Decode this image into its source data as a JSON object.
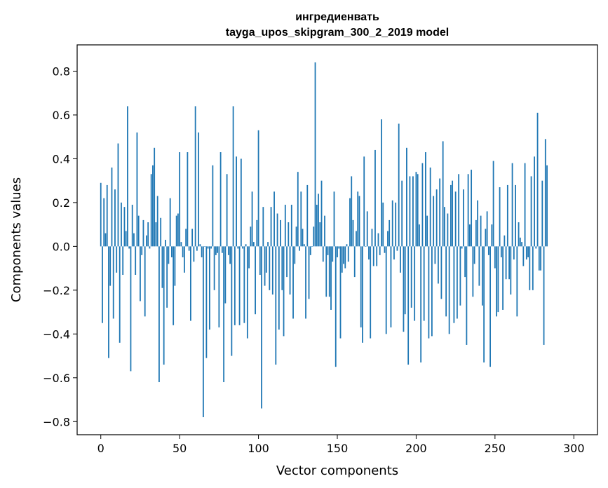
{
  "chart_data": {
    "type": "bar",
    "title_lines": [
      "ингредиенвать",
      "tayga_upos_skipgram_300_2_2019 model"
    ],
    "xlabel": "Vector components",
    "ylabel": "Components values",
    "xlim": [
      -15,
      315
    ],
    "ylim": [
      -0.86,
      0.92
    ],
    "xticks": [
      0,
      50,
      100,
      150,
      200,
      250,
      300
    ],
    "yticks": [
      -0.8,
      -0.6,
      -0.4,
      -0.2,
      0.0,
      0.2,
      0.4,
      0.6,
      0.8
    ],
    "ytick_labels": [
      "−0.8",
      "−0.6",
      "−0.4",
      "−0.2",
      "0.0",
      "0.2",
      "0.4",
      "0.6",
      "0.8"
    ],
    "grid": false,
    "bar_color": "#1f77b4",
    "values": [
      0.29,
      -0.35,
      0.22,
      0.06,
      0.28,
      -0.51,
      -0.18,
      0.36,
      -0.33,
      0.26,
      -0.12,
      0.47,
      -0.44,
      0.2,
      -0.13,
      0.18,
      0.07,
      0.64,
      -0.01,
      -0.57,
      0.19,
      0.06,
      -0.13,
      0.52,
      0.14,
      -0.25,
      -0.04,
      0.12,
      -0.32,
      0.05,
      0.11,
      -0.01,
      0.33,
      0.37,
      0.45,
      0.11,
      0.23,
      -0.62,
      0.13,
      -0.19,
      -0.54,
      0.03,
      -0.28,
      -0.08,
      0.22,
      -0.05,
      -0.36,
      -0.18,
      0.14,
      0.15,
      0.43,
      0.02,
      -0.05,
      -0.12,
      0.08,
      0.43,
      -0.02,
      -0.34,
      0.08,
      -0.07,
      0.64,
      -0.02,
      0.52,
      0.01,
      -0.05,
      -0.78,
      0.0,
      -0.51,
      -0.01,
      -0.38,
      -0.01,
      0.37,
      -0.2,
      -0.04,
      -0.03,
      -0.37,
      0.43,
      -0.03,
      -0.62,
      -0.26,
      0.33,
      -0.04,
      -0.08,
      -0.5,
      0.64,
      -0.36,
      0.41,
      -0.01,
      -0.36,
      0.4,
      -0.01,
      -0.35,
      0.01,
      -0.42,
      -0.1,
      0.09,
      0.25,
      0.02,
      -0.31,
      0.12,
      0.53,
      -0.13,
      -0.74,
      0.18,
      -0.18,
      -0.12,
      0.02,
      -0.2,
      0.18,
      -0.22,
      0.25,
      -0.54,
      0.15,
      -0.38,
      0.12,
      -0.2,
      -0.41,
      0.19,
      -0.14,
      0.11,
      -0.22,
      0.19,
      -0.33,
      -0.08,
      0.09,
      0.34,
      -0.02,
      0.25,
      0.08,
      0.01,
      -0.33,
      0.28,
      -0.24,
      -0.04,
      0.0,
      0.09,
      0.84,
      0.19,
      0.24,
      0.11,
      0.3,
      -0.07,
      0.14,
      -0.23,
      -0.04,
      -0.23,
      -0.29,
      -0.07,
      0.25,
      -0.55,
      -0.05,
      -0.01,
      -0.42,
      -0.12,
      -0.08,
      -0.1,
      0.01,
      -0.07,
      0.22,
      0.32,
      0.12,
      -0.14,
      0.07,
      0.25,
      0.23,
      -0.37,
      -0.44,
      0.41,
      0.0,
      0.16,
      -0.06,
      -0.42,
      0.08,
      -0.09,
      0.44,
      -0.09,
      0.06,
      -0.04,
      0.58,
      0.2,
      -0.03,
      -0.4,
      0.07,
      0.12,
      -0.37,
      0.21,
      -0.06,
      0.2,
      -0.02,
      0.56,
      -0.12,
      0.3,
      -0.39,
      -0.31,
      0.45,
      -0.54,
      0.32,
      -0.28,
      0.32,
      -0.34,
      0.34,
      0.33,
      0.1,
      -0.53,
      0.38,
      -0.34,
      0.43,
      0.14,
      -0.42,
      0.36,
      -0.41,
      0.23,
      -0.08,
      0.26,
      -0.17,
      0.31,
      -0.24,
      0.48,
      0.18,
      -0.32,
      0.15,
      -0.4,
      0.28,
      0.3,
      -0.35,
      0.25,
      -0.33,
      0.33,
      -0.27,
      -0.01,
      0.26,
      -0.14,
      -0.45,
      0.33,
      0.1,
      0.35,
      -0.23,
      -0.08,
      0.12,
      0.21,
      -0.18,
      0.14,
      -0.27,
      -0.53,
      0.08,
      0.16,
      -0.04,
      -0.55,
      0.1,
      0.39,
      -0.1,
      -0.32,
      -0.3,
      0.27,
      -0.05,
      -0.29,
      0.05,
      -0.15,
      0.28,
      -0.15,
      -0.22,
      0.38,
      -0.06,
      0.28,
      -0.32,
      0.11,
      0.04,
      0.02,
      -0.09,
      0.38,
      -0.06,
      -0.05,
      -0.2,
      0.32,
      -0.2,
      0.41,
      -0.01,
      0.61,
      -0.11,
      -0.11,
      0.3,
      -0.45,
      0.49,
      0.37
    ]
  }
}
